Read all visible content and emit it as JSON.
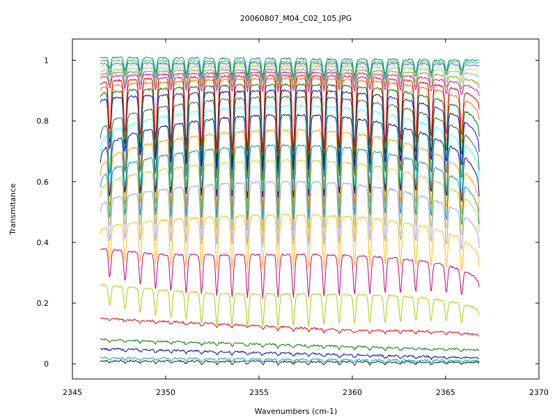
{
  "chart_data": {
    "type": "line",
    "title": "20060807_M04_C02_105.JPG",
    "xlabel": "Wavenumbers (cm-1)",
    "ylabel": "Transmitance",
    "xlim": [
      2345,
      2370
    ],
    "ylim": [
      -0.05,
      1.07
    ],
    "xticks": [
      2345,
      2350,
      2355,
      2360,
      2365,
      2370
    ],
    "xtick_labels": [
      "2345",
      "2350",
      "2355",
      "2360",
      "2365",
      "2370"
    ],
    "yticks": [
      0,
      0.2,
      0.4,
      0.6,
      0.8,
      1
    ],
    "ytick_labels": [
      "0",
      "0.2",
      "0.4",
      "0.6",
      "0.8",
      "1"
    ],
    "x_range": [
      2346.5,
      2366.8
    ],
    "grid": false,
    "legend": false,
    "series_description": "Many overlaid transmittance spectra of CO2 absorption band; curves stack from near 0 up to ~1, with absorption dips becoming deeper toward the top curves.",
    "series": [
      {
        "color": "#1a1a1a",
        "envelope": 0.0,
        "start": 0.01,
        "end": 0.005
      },
      {
        "color": "#00aaaa",
        "envelope": 0.005,
        "start": 0.02,
        "end": 0.01
      },
      {
        "color": "#0000aa",
        "envelope": 0.02,
        "start": 0.05,
        "end": 0.02
      },
      {
        "color": "#007700",
        "envelope": 0.05,
        "start": 0.08,
        "end": 0.045
      },
      {
        "color": "#dd0000",
        "envelope": 0.11,
        "start": 0.15,
        "end": 0.09
      },
      {
        "color": "#aacc00",
        "envelope": 0.23,
        "start": 0.26,
        "end": 0.16
      },
      {
        "color": "#bb0077",
        "envelope": 0.36,
        "start": 0.38,
        "end": 0.25
      },
      {
        "color": "#ffbb00",
        "envelope": 0.49,
        "start": 0.43,
        "end": 0.32
      },
      {
        "color": "#9999ee",
        "envelope": 0.6,
        "start": 0.5,
        "end": 0.38
      },
      {
        "color": "#cccc33",
        "envelope": 0.67,
        "start": 0.55,
        "end": 0.43
      },
      {
        "color": "#00999a",
        "envelope": 0.72,
        "start": 0.58,
        "end": 0.46
      },
      {
        "color": "#ff9900",
        "envelope": 0.77,
        "start": 0.62,
        "end": 0.5
      },
      {
        "color": "#000088",
        "envelope": 0.82,
        "start": 0.66,
        "end": 0.55
      },
      {
        "color": "#33ffff",
        "envelope": 0.85,
        "start": 0.7,
        "end": 0.6
      },
      {
        "color": "#336633",
        "envelope": 0.88,
        "start": 0.74,
        "end": 0.64
      },
      {
        "color": "#0000cc",
        "envelope": 0.9,
        "start": 0.86,
        "end": 0.7
      },
      {
        "color": "#006600",
        "envelope": 0.92,
        "start": 0.88,
        "end": 0.75
      },
      {
        "color": "#ff6600",
        "envelope": 0.94,
        "start": 0.9,
        "end": 0.8
      },
      {
        "color": "#cc0000",
        "envelope": 0.95,
        "start": 0.92,
        "end": 0.84
      },
      {
        "color": "#cc00cc",
        "envelope": 0.96,
        "start": 0.94,
        "end": 0.88
      },
      {
        "color": "#999900",
        "envelope": 0.97,
        "start": 0.95,
        "end": 0.91
      },
      {
        "color": "#66cccc",
        "envelope": 0.98,
        "start": 0.96,
        "end": 0.94
      },
      {
        "color": "#ffcc66",
        "envelope": 0.985,
        "start": 0.98,
        "end": 0.96
      },
      {
        "color": "#3366ff",
        "envelope": 0.99,
        "start": 0.99,
        "end": 0.98
      },
      {
        "color": "#33cc33",
        "envelope": 0.995,
        "start": 1.0,
        "end": 0.99
      },
      {
        "color": "#008888",
        "envelope": 1.0,
        "start": 1.01,
        "end": 1.0
      }
    ]
  }
}
